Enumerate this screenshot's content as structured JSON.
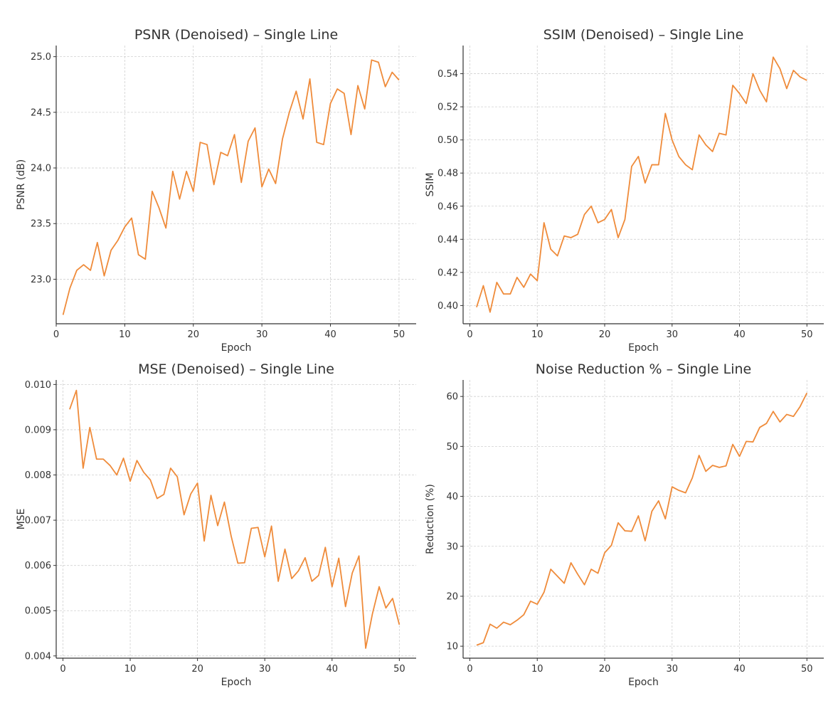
{
  "colors": {
    "line": "#ef8b3a"
  },
  "chart_data": [
    {
      "type": "line",
      "title": "PSNR (Denoised) – Single Line",
      "xlabel": "Epoch",
      "ylabel": "PSNR (dB)",
      "xlim": [
        0,
        52.5
      ],
      "ylim": [
        22.6,
        25.1
      ],
      "xticks": [
        0,
        10,
        20,
        30,
        40,
        50
      ],
      "yticks": [
        23.0,
        23.5,
        24.0,
        24.5,
        25.0
      ],
      "ytick_labels": [
        "23.0",
        "23.5",
        "24.0",
        "24.5",
        "25.0"
      ],
      "grid": true,
      "x": [
        1,
        2,
        3,
        4,
        5,
        6,
        7,
        8,
        9,
        10,
        11,
        12,
        13,
        14,
        15,
        16,
        17,
        18,
        19,
        20,
        21,
        22,
        23,
        24,
        25,
        26,
        27,
        28,
        29,
        30,
        31,
        32,
        33,
        34,
        35,
        36,
        37,
        38,
        39,
        40,
        41,
        42,
        43,
        44,
        45,
        46,
        47,
        48,
        49,
        50
      ],
      "values": [
        22.68,
        22.92,
        23.08,
        23.13,
        23.08,
        23.33,
        23.03,
        23.26,
        23.35,
        23.47,
        23.55,
        23.22,
        23.18,
        23.79,
        23.64,
        23.46,
        23.97,
        23.72,
        23.97,
        23.79,
        24.23,
        24.21,
        23.85,
        24.14,
        24.11,
        24.3,
        23.87,
        24.24,
        24.36,
        23.83,
        23.99,
        23.86,
        24.26,
        24.5,
        24.69,
        24.44,
        24.8,
        24.23,
        24.21,
        24.58,
        24.71,
        24.67,
        24.3,
        24.74,
        24.53,
        24.97,
        24.95,
        24.73,
        24.86,
        24.79
      ]
    },
    {
      "type": "line",
      "title": "SSIM (Denoised) – Single Line",
      "xlabel": "Epoch",
      "ylabel": "SSIM",
      "xlim": [
        -1,
        52.5
      ],
      "ylim": [
        0.389,
        0.557
      ],
      "xticks": [
        0,
        10,
        20,
        30,
        40,
        50
      ],
      "yticks": [
        0.4,
        0.42,
        0.44,
        0.46,
        0.48,
        0.5,
        0.52,
        0.54
      ],
      "ytick_labels": [
        "0.40",
        "0.42",
        "0.44",
        "0.46",
        "0.48",
        "0.50",
        "0.52",
        "0.54"
      ],
      "grid": true,
      "x": [
        1,
        2,
        3,
        4,
        5,
        6,
        7,
        8,
        9,
        10,
        11,
        12,
        13,
        14,
        15,
        16,
        17,
        18,
        19,
        20,
        21,
        22,
        23,
        24,
        25,
        26,
        27,
        28,
        29,
        30,
        31,
        32,
        33,
        34,
        35,
        36,
        37,
        38,
        39,
        40,
        41,
        42,
        43,
        44,
        45,
        46,
        47,
        48,
        49,
        50
      ],
      "values": [
        0.399,
        0.412,
        0.396,
        0.414,
        0.407,
        0.407,
        0.417,
        0.411,
        0.419,
        0.415,
        0.45,
        0.434,
        0.43,
        0.442,
        0.441,
        0.443,
        0.455,
        0.46,
        0.45,
        0.452,
        0.458,
        0.441,
        0.452,
        0.484,
        0.49,
        0.474,
        0.485,
        0.485,
        0.516,
        0.5,
        0.49,
        0.485,
        0.482,
        0.503,
        0.497,
        0.493,
        0.504,
        0.503,
        0.533,
        0.528,
        0.522,
        0.54,
        0.53,
        0.523,
        0.55,
        0.543,
        0.531,
        0.542,
        0.538,
        0.536
      ]
    },
    {
      "type": "line",
      "title": "MSE (Denoised) – Single Line",
      "xlabel": "Epoch",
      "ylabel": "MSE",
      "xlim": [
        -1,
        52.5
      ],
      "ylim": [
        0.00395,
        0.0101
      ],
      "xticks": [
        0,
        10,
        20,
        30,
        40,
        50
      ],
      "yticks": [
        0.004,
        0.005,
        0.006,
        0.007,
        0.008,
        0.009,
        0.01
      ],
      "ytick_labels": [
        "0.004",
        "0.005",
        "0.006",
        "0.007",
        "0.008",
        "0.009",
        "0.010"
      ],
      "grid": true,
      "x": [
        1,
        2,
        3,
        4,
        5,
        6,
        7,
        8,
        9,
        10,
        11,
        12,
        13,
        14,
        15,
        16,
        17,
        18,
        19,
        20,
        21,
        22,
        23,
        24,
        25,
        26,
        27,
        28,
        29,
        30,
        31,
        32,
        33,
        34,
        35,
        36,
        37,
        38,
        39,
        40,
        41,
        42,
        43,
        44,
        45,
        46,
        47,
        48,
        49,
        50
      ],
      "values": [
        0.00945,
        0.00987,
        0.00815,
        0.00905,
        0.00835,
        0.00835,
        0.00821,
        0.008,
        0.00837,
        0.00786,
        0.00832,
        0.00806,
        0.00789,
        0.00748,
        0.00757,
        0.00815,
        0.00796,
        0.00712,
        0.00758,
        0.00782,
        0.00654,
        0.00755,
        0.00688,
        0.0074,
        0.00665,
        0.00605,
        0.00606,
        0.00682,
        0.00684,
        0.00619,
        0.00687,
        0.00565,
        0.00636,
        0.00571,
        0.00588,
        0.00617,
        0.00565,
        0.00578,
        0.0064,
        0.00553,
        0.00616,
        0.00509,
        0.00583,
        0.00621,
        0.00417,
        0.00493,
        0.00553,
        0.00506,
        0.00527,
        0.00469
      ]
    },
    {
      "type": "line",
      "title": "Noise Reduction % – Single Line",
      "xlabel": "Epoch",
      "ylabel": "Reduction (%)",
      "xlim": [
        -1,
        52.5
      ],
      "ylim": [
        7.6,
        63.3
      ],
      "xticks": [
        0,
        10,
        20,
        30,
        40,
        50
      ],
      "yticks": [
        10,
        20,
        30,
        40,
        50,
        60
      ],
      "ytick_labels": [
        "10",
        "20",
        "30",
        "40",
        "50",
        "60"
      ],
      "grid": true,
      "x": [
        1,
        2,
        3,
        4,
        5,
        6,
        7,
        8,
        9,
        10,
        11,
        12,
        13,
        14,
        15,
        16,
        17,
        18,
        19,
        20,
        21,
        22,
        23,
        24,
        25,
        26,
        27,
        28,
        29,
        30,
        31,
        32,
        33,
        34,
        35,
        36,
        37,
        38,
        39,
        40,
        41,
        42,
        43,
        44,
        45,
        46,
        47,
        48,
        49,
        50
      ],
      "values": [
        10.2,
        10.7,
        14.4,
        13.6,
        14.8,
        14.3,
        15.2,
        16.3,
        19.0,
        18.4,
        20.8,
        25.4,
        24.0,
        22.6,
        26.7,
        24.4,
        22.3,
        25.4,
        24.6,
        28.7,
        30.2,
        34.7,
        33.1,
        33.0,
        36.1,
        31.1,
        37.0,
        39.1,
        35.5,
        41.9,
        41.2,
        40.7,
        43.7,
        48.2,
        45.0,
        46.2,
        45.8,
        46.1,
        50.4,
        48.0,
        51.0,
        50.9,
        53.8,
        54.6,
        57.0,
        54.9,
        56.4,
        56.0,
        58.0,
        60.7
      ]
    }
  ]
}
